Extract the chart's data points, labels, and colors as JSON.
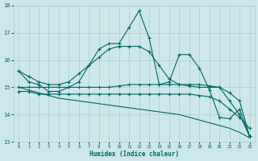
{
  "xlabel": "Humidex (Indice chaleur)",
  "xlim": [
    -0.5,
    23.5
  ],
  "ylim": [
    13,
    18
  ],
  "yticks": [
    13,
    14,
    15,
    16,
    17,
    18
  ],
  "xticks": [
    0,
    1,
    2,
    3,
    4,
    5,
    6,
    7,
    8,
    9,
    10,
    11,
    12,
    13,
    14,
    15,
    16,
    17,
    18,
    19,
    20,
    21,
    22,
    23
  ],
  "bg_color": "#cce8ea",
  "line_color": "#006666",
  "grid_color": "#aacfd0",
  "series": {
    "spiky": [
      15.6,
      15.2,
      15.1,
      14.85,
      14.85,
      15.0,
      15.2,
      15.8,
      16.4,
      16.6,
      16.6,
      17.2,
      17.8,
      16.8,
      15.1,
      15.2,
      16.2,
      16.2,
      15.7,
      14.9,
      13.9,
      13.85,
      14.2,
      13.2
    ],
    "upper_trend": [
      15.6,
      15.4,
      15.2,
      15.1,
      15.1,
      15.2,
      15.5,
      15.8,
      16.1,
      16.4,
      16.5,
      16.5,
      16.5,
      16.3,
      15.8,
      15.3,
      15.1,
      15.1,
      15.1,
      15.05,
      15.0,
      14.5,
      14.0,
      13.2
    ],
    "flat_high": [
      15.0,
      15.0,
      15.0,
      15.0,
      15.0,
      15.0,
      15.0,
      15.0,
      15.0,
      15.0,
      15.05,
      15.1,
      15.1,
      15.1,
      15.1,
      15.1,
      15.1,
      15.05,
      15.0,
      15.0,
      15.0,
      14.8,
      14.5,
      13.2
    ],
    "flat_low": [
      14.85,
      14.85,
      14.75,
      14.75,
      14.75,
      14.75,
      14.75,
      14.75,
      14.75,
      14.75,
      14.75,
      14.75,
      14.75,
      14.75,
      14.75,
      14.75,
      14.75,
      14.75,
      14.7,
      14.65,
      14.5,
      14.2,
      13.9,
      13.5
    ],
    "diagonal": [
      15.0,
      14.9,
      14.8,
      14.7,
      14.6,
      14.55,
      14.5,
      14.45,
      14.4,
      14.35,
      14.3,
      14.25,
      14.2,
      14.15,
      14.1,
      14.05,
      14.0,
      13.9,
      13.8,
      13.7,
      13.6,
      13.5,
      13.35,
      13.15
    ]
  },
  "markers": {
    "spiky": [
      0,
      1,
      2,
      4,
      6,
      7,
      8,
      10,
      11,
      12,
      13,
      14,
      15,
      16,
      17,
      18,
      19,
      20,
      21,
      22,
      23
    ],
    "upper_trend": [
      0,
      3,
      6,
      7,
      8,
      9,
      10,
      17,
      18,
      19,
      20,
      21,
      22,
      23
    ],
    "flat_high": [
      2,
      3,
      4,
      14,
      15,
      19,
      20,
      21,
      22,
      23
    ],
    "flat_low": [
      2,
      3,
      4
    ]
  }
}
